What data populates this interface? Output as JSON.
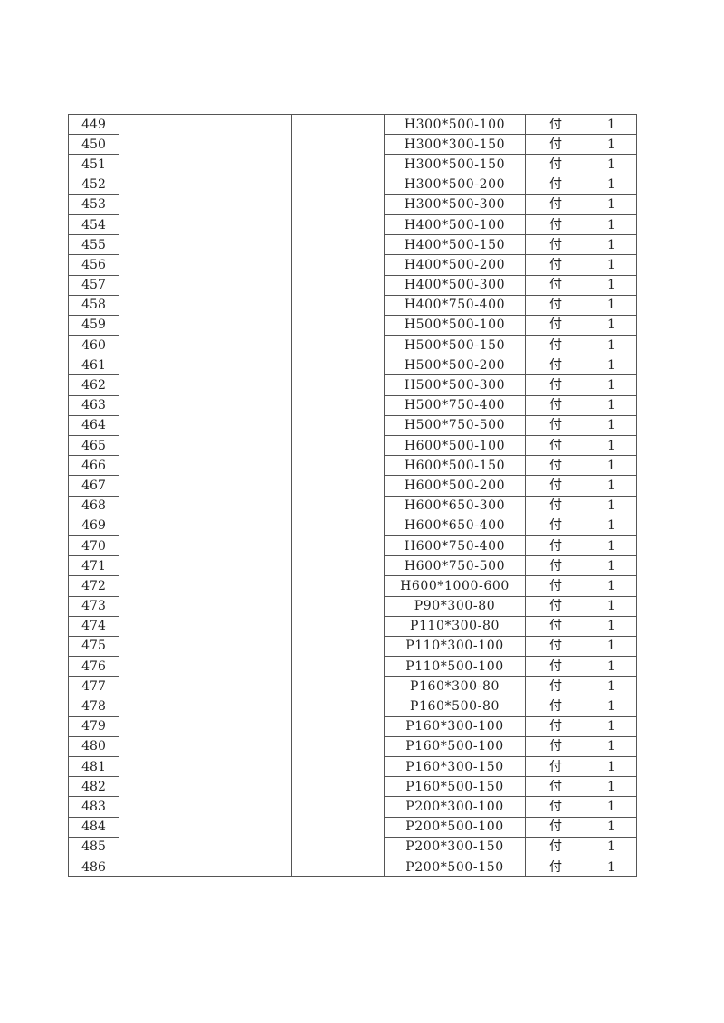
{
  "table": {
    "rows": [
      {
        "no": "449",
        "spec": "H300*500-100",
        "unit": "付",
        "qty": "1"
      },
      {
        "no": "450",
        "spec": "H300*300-150",
        "unit": "付",
        "qty": "1"
      },
      {
        "no": "451",
        "spec": "H300*500-150",
        "unit": "付",
        "qty": "1"
      },
      {
        "no": "452",
        "spec": "H300*500-200",
        "unit": "付",
        "qty": "1"
      },
      {
        "no": "453",
        "spec": "H300*500-300",
        "unit": "付",
        "qty": "1"
      },
      {
        "no": "454",
        "spec": "H400*500-100",
        "unit": "付",
        "qty": "1"
      },
      {
        "no": "455",
        "spec": "H400*500-150",
        "unit": "付",
        "qty": "1"
      },
      {
        "no": "456",
        "spec": "H400*500-200",
        "unit": "付",
        "qty": "1"
      },
      {
        "no": "457",
        "spec": "H400*500-300",
        "unit": "付",
        "qty": "1"
      },
      {
        "no": "458",
        "spec": "H400*750-400",
        "unit": "付",
        "qty": "1"
      },
      {
        "no": "459",
        "spec": "H500*500-100",
        "unit": "付",
        "qty": "1"
      },
      {
        "no": "460",
        "spec": "H500*500-150",
        "unit": "付",
        "qty": "1"
      },
      {
        "no": "461",
        "spec": "H500*500-200",
        "unit": "付",
        "qty": "1"
      },
      {
        "no": "462",
        "spec": "H500*500-300",
        "unit": "付",
        "qty": "1"
      },
      {
        "no": "463",
        "spec": "H500*750-400",
        "unit": "付",
        "qty": "1"
      },
      {
        "no": "464",
        "spec": "H500*750-500",
        "unit": "付",
        "qty": "1"
      },
      {
        "no": "465",
        "spec": "H600*500-100",
        "unit": "付",
        "qty": "1"
      },
      {
        "no": "466",
        "spec": "H600*500-150",
        "unit": "付",
        "qty": "1"
      },
      {
        "no": "467",
        "spec": "H600*500-200",
        "unit": "付",
        "qty": "1"
      },
      {
        "no": "468",
        "spec": "H600*650-300",
        "unit": "付",
        "qty": "1"
      },
      {
        "no": "469",
        "spec": "H600*650-400",
        "unit": "付",
        "qty": "1"
      },
      {
        "no": "470",
        "spec": "H600*750-400",
        "unit": "付",
        "qty": "1"
      },
      {
        "no": "471",
        "spec": "H600*750-500",
        "unit": "付",
        "qty": "1"
      },
      {
        "no": "472",
        "spec": "H600*1000-600",
        "unit": "付",
        "qty": "1"
      },
      {
        "no": "473",
        "spec": "P90*300-80",
        "unit": "付",
        "qty": "1"
      },
      {
        "no": "474",
        "spec": "P110*300-80",
        "unit": "付",
        "qty": "1"
      },
      {
        "no": "475",
        "spec": "P110*300-100",
        "unit": "付",
        "qty": "1"
      },
      {
        "no": "476",
        "spec": "P110*500-100",
        "unit": "付",
        "qty": "1"
      },
      {
        "no": "477",
        "spec": "P160*300-80",
        "unit": "付",
        "qty": "1"
      },
      {
        "no": "478",
        "spec": "P160*500-80",
        "unit": "付",
        "qty": "1"
      },
      {
        "no": "479",
        "spec": "P160*300-100",
        "unit": "付",
        "qty": "1"
      },
      {
        "no": "480",
        "spec": "P160*500-100",
        "unit": "付",
        "qty": "1"
      },
      {
        "no": "481",
        "spec": "P160*300-150",
        "unit": "付",
        "qty": "1"
      },
      {
        "no": "482",
        "spec": "P160*500-150",
        "unit": "付",
        "qty": "1"
      },
      {
        "no": "483",
        "spec": "P200*300-100",
        "unit": "付",
        "qty": "1"
      },
      {
        "no": "484",
        "spec": "P200*500-100",
        "unit": "付",
        "qty": "1"
      },
      {
        "no": "485",
        "spec": "P200*300-150",
        "unit": "付",
        "qty": "1"
      },
      {
        "no": "486",
        "spec": "P200*500-150",
        "unit": "付",
        "qty": "1"
      }
    ]
  }
}
